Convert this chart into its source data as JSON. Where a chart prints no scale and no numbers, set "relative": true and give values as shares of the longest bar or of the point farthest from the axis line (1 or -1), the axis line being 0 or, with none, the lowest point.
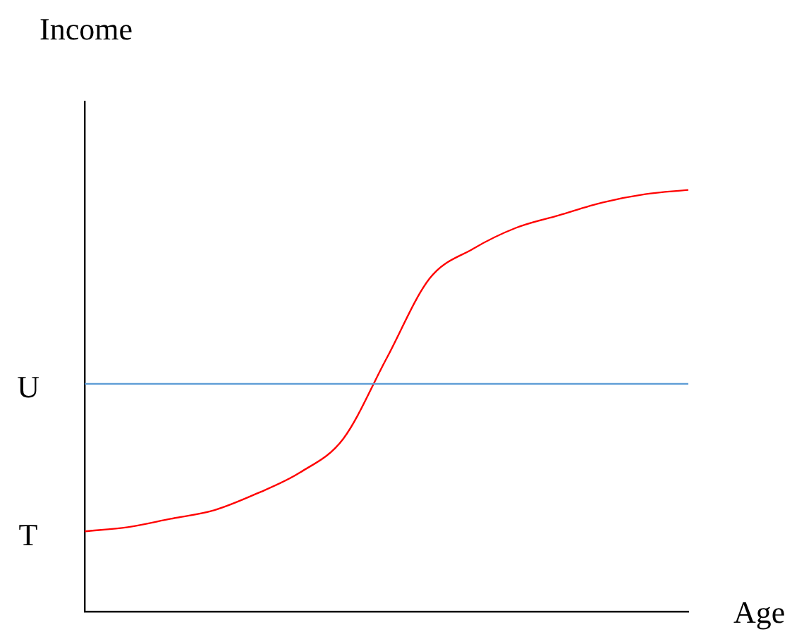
{
  "chart_data": {
    "type": "line",
    "relative": true,
    "xlabel": "Age",
    "ylabel": "Income",
    "categories": [
      null,
      null,
      null,
      null,
      null,
      null,
      null,
      null,
      null,
      null,
      null,
      null,
      null,
      null,
      null
    ],
    "series": [
      {
        "color": "#5b9bd5",
        "values": [
          0.54,
          0.54,
          0.54,
          0.54,
          0.54,
          0.54,
          0.54,
          0.54,
          0.54,
          0.54,
          0.54,
          0.54,
          0.54,
          0.54,
          0.54
        ]
      },
      {
        "color": "#ff0000",
        "values": [
          0.19,
          0.2,
          0.22,
          0.24,
          0.28,
          0.33,
          0.41,
          0.6,
          0.79,
          0.86,
          0.91,
          0.94,
          0.97,
          0.99,
          1
        ]
      }
    ],
    "annotations": [
      "U",
      "T"
    ]
  }
}
